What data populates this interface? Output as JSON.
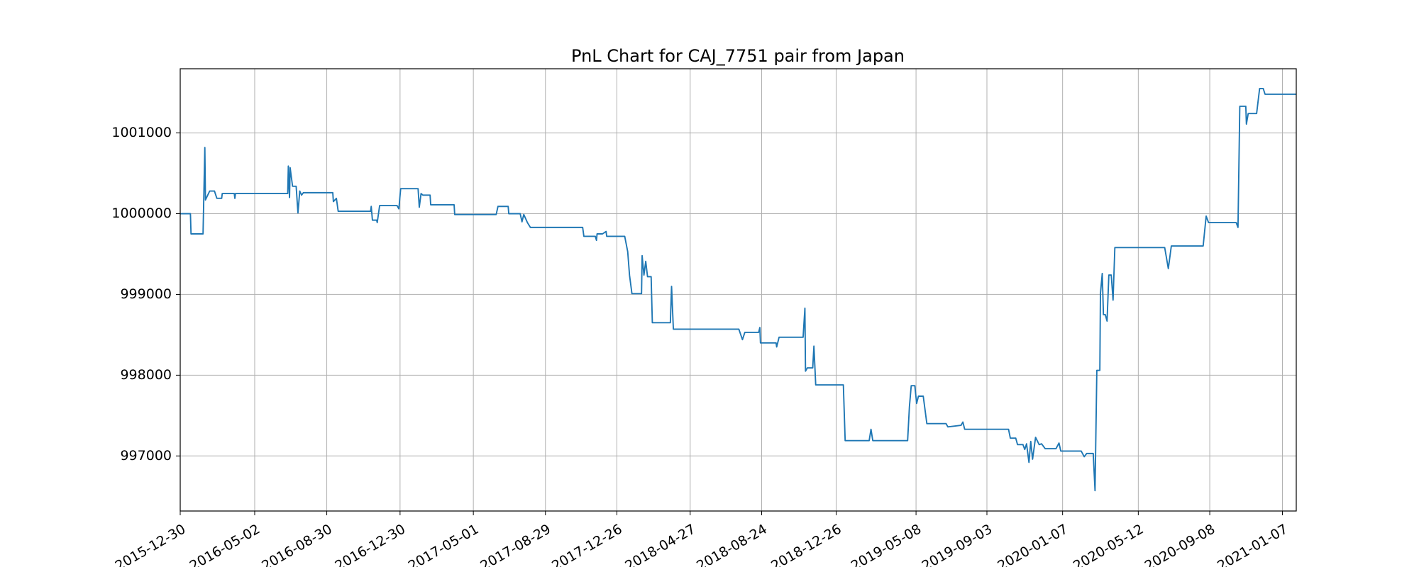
{
  "chart_data": {
    "type": "line",
    "title": "PnL Chart for CAJ_7751 pair from Japan",
    "xlim": [
      "2015-12-30",
      "2021-01-30"
    ],
    "xticks": [
      "2015-12-30",
      "2016-05-02",
      "2016-08-30",
      "2016-12-30",
      "2017-05-01",
      "2017-08-29",
      "2017-12-26",
      "2018-04-27",
      "2018-08-24",
      "2018-12-26",
      "2019-05-08",
      "2019-09-03",
      "2020-01-07",
      "2020-05-12",
      "2020-09-08",
      "2021-01-07"
    ],
    "ylim": [
      996318,
      1001795
    ],
    "yticks": [
      997000,
      998000,
      999000,
      1000000,
      1001000
    ],
    "grid": true,
    "series": [
      {
        "color": "#1f77b4",
        "x": [
          "2015-12-30",
          "2016-01-16",
          "2016-01-17",
          "2016-02-06",
          "2016-02-09",
          "2016-02-10",
          "2016-02-17",
          "2016-02-25",
          "2016-02-29",
          "2016-03-08",
          "2016-03-09",
          "2016-03-29",
          "2016-03-30",
          "2016-03-31",
          "2016-06-26",
          "2016-06-27",
          "2016-06-29",
          "2016-06-30",
          "2016-07-04",
          "2016-07-10",
          "2016-07-13",
          "2016-07-16",
          "2016-07-19",
          "2016-07-22",
          "2016-09-09",
          "2016-09-10",
          "2016-09-15",
          "2016-09-18",
          "2016-11-11",
          "2016-11-12",
          "2016-11-14",
          "2016-11-21",
          "2016-11-22",
          "2016-11-26",
          "2016-12-25",
          "2016-12-28",
          "2016-12-31",
          "2017-01-29",
          "2017-01-31",
          "2017-02-03",
          "2017-02-06",
          "2017-02-18",
          "2017-02-19",
          "2017-03-30",
          "2017-03-31",
          "2017-06-08",
          "2017-06-11",
          "2017-06-28",
          "2017-06-29",
          "2017-07-18",
          "2017-07-21",
          "2017-07-24",
          "2017-07-30",
          "2017-08-04",
          "2017-10-30",
          "2017-11-01",
          "2017-11-20",
          "2017-11-22",
          "2017-11-23",
          "2017-12-02",
          "2017-12-08",
          "2017-12-09",
          "2018-01-08",
          "2018-01-13",
          "2018-01-16",
          "2018-01-20",
          "2018-02-05",
          "2018-02-06",
          "2018-02-09",
          "2018-02-12",
          "2018-02-15",
          "2018-02-21",
          "2018-02-23",
          "2018-03-25",
          "2018-03-27",
          "2018-03-30",
          "2018-07-17",
          "2018-07-23",
          "2018-07-27",
          "2018-08-19",
          "2018-08-21",
          "2018-08-22",
          "2018-09-17",
          "2018-09-18",
          "2018-09-22",
          "2018-11-01",
          "2018-11-04",
          "2018-11-05",
          "2018-11-08",
          "2018-11-17",
          "2018-11-19",
          "2018-11-22",
          "2019-01-07",
          "2019-01-10",
          "2019-02-19",
          "2019-02-22",
          "2019-02-25",
          "2019-04-24",
          "2019-04-27",
          "2019-04-30",
          "2019-05-06",
          "2019-05-09",
          "2019-05-12",
          "2019-05-20",
          "2019-05-23",
          "2019-05-26",
          "2019-06-27",
          "2019-06-30",
          "2019-07-22",
          "2019-07-25",
          "2019-07-28",
          "2019-10-09",
          "2019-10-12",
          "2019-10-21",
          "2019-10-24",
          "2019-11-02",
          "2019-11-05",
          "2019-11-08",
          "2019-11-12",
          "2019-11-15",
          "2019-11-18",
          "2019-11-23",
          "2019-11-29",
          "2019-12-03",
          "2019-12-09",
          "2019-12-27",
          "2020-01-01",
          "2020-01-04",
          "2020-02-07",
          "2020-02-12",
          "2020-02-16",
          "2020-02-27",
          "2020-03-01",
          "2020-03-04",
          "2020-03-09",
          "2020-03-10",
          "2020-03-13",
          "2020-03-15",
          "2020-03-18",
          "2020-03-21",
          "2020-03-24",
          "2020-03-28",
          "2020-03-31",
          "2020-04-03",
          "2020-06-25",
          "2020-07-01",
          "2020-07-06",
          "2020-08-28",
          "2020-09-02",
          "2020-09-06",
          "2020-10-22",
          "2020-10-25",
          "2020-10-28",
          "2020-11-07",
          "2020-11-08",
          "2020-11-11",
          "2020-11-25",
          "2020-11-30",
          "2020-12-06",
          "2020-12-09",
          "2021-01-30"
        ],
        "values": [
          1000000,
          1000000,
          999750,
          999750,
          1000820,
          1000170,
          1000280,
          1000280,
          1000190,
          1000190,
          1000250,
          1000250,
          1000190,
          1000250,
          1000250,
          1000590,
          1000200,
          1000570,
          1000340,
          1000340,
          1000010,
          1000280,
          1000230,
          1000260,
          1000260,
          1000150,
          1000190,
          1000030,
          1000030,
          1000090,
          999920,
          999920,
          999890,
          1000100,
          1000100,
          1000060,
          1000310,
          1000310,
          1000080,
          1000250,
          1000230,
          1000230,
          1000110,
          1000110,
          999990,
          999990,
          1000090,
          1000090,
          1000000,
          1000000,
          999900,
          999990,
          999890,
          999830,
          999830,
          999720,
          999720,
          999670,
          999750,
          999750,
          999780,
          999720,
          999720,
          999530,
          999240,
          999010,
          999010,
          999480,
          999240,
          999410,
          999220,
          999220,
          998650,
          998650,
          999100,
          998570,
          998570,
          998440,
          998530,
          998530,
          998590,
          998400,
          998400,
          998350,
          998470,
          998470,
          998830,
          998050,
          998090,
          998090,
          998360,
          997880,
          997880,
          997190,
          997190,
          997330,
          997190,
          997190,
          997610,
          997870,
          997870,
          997650,
          997740,
          997740,
          997570,
          997400,
          997400,
          997360,
          997380,
          997420,
          997330,
          997330,
          997220,
          997220,
          997140,
          997140,
          997080,
          997150,
          996920,
          997180,
          996960,
          997230,
          997140,
          997150,
          997090,
          997090,
          997160,
          997060,
          997060,
          996990,
          997030,
          997030,
          996570,
          998060,
          998060,
          999010,
          999260,
          998750,
          998750,
          998670,
          999240,
          999240,
          998930,
          999580,
          999580,
          999320,
          999600,
          999600,
          999970,
          999890,
          999890,
          999830,
          1001330,
          1001330,
          1001110,
          1001240,
          1001240,
          1001550,
          1001550,
          1001480,
          1001480
        ]
      }
    ]
  }
}
